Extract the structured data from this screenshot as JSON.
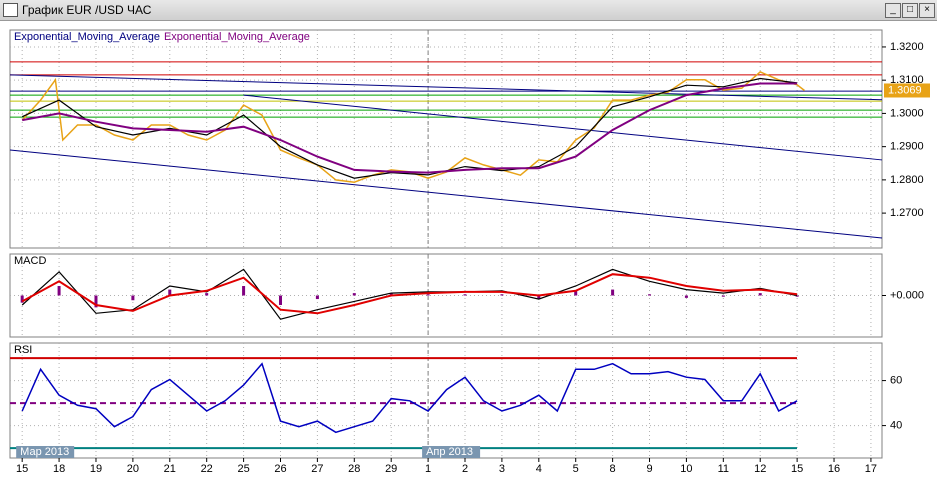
{
  "window": {
    "title": "График EUR /USD  ЧАС"
  },
  "chart_data": [
    {
      "type": "line",
      "xlim": [
        -0.33,
        23.3
      ],
      "ylim": [
        1.2595,
        1.3251
      ],
      "yticks": [
        {
          "value": 1.27,
          "label": "1.2700"
        },
        {
          "value": 1.28,
          "label": "1.2800"
        },
        {
          "value": 1.29,
          "label": "1.2900"
        },
        {
          "value": 1.3,
          "label": "1.3000"
        },
        {
          "value": 1.31,
          "label": "1.3100"
        },
        {
          "value": 1.32,
          "label": "1.3200"
        }
      ],
      "grid": true,
      "last_price": 1.3069,
      "series": [
        {
          "color": "#e8a317",
          "x": [
            0,
            0.5,
            0.9,
            1.1,
            1.5,
            2,
            2.5,
            3,
            3.5,
            4,
            4.5,
            5,
            5.5,
            6,
            6.5,
            7,
            7.5,
            8,
            8.5,
            9,
            9.5,
            10,
            10.5,
            11,
            11.5,
            12,
            12.5,
            13,
            13.5,
            14,
            14.5,
            15,
            15.5,
            16,
            16.5,
            17,
            17.5,
            18,
            18.5,
            19,
            19.5,
            20,
            20.5,
            21,
            21.2
          ],
          "values": [
            1.298,
            1.304,
            1.3101,
            1.292,
            1.2965,
            1.2965,
            1.2935,
            1.292,
            1.2965,
            1.2965,
            1.2935,
            1.292,
            1.295,
            1.3025,
            1.2995,
            1.289,
            1.2866,
            1.2845,
            1.28,
            1.2793,
            1.2814,
            1.283,
            1.2824,
            1.2805,
            1.2824,
            1.2866,
            1.2845,
            1.283,
            1.2814,
            1.286,
            1.2854,
            1.292,
            1.2956,
            1.304,
            1.304,
            1.3055,
            1.3064,
            1.3101,
            1.3101,
            1.307,
            1.3076,
            1.3125,
            1.3101,
            1.3086,
            1.3069
          ]
        },
        {
          "name": "Exponential_Moving_Average",
          "color": "#000000",
          "x": [
            0,
            1,
            2,
            3,
            4,
            5,
            6,
            7,
            8,
            9,
            10,
            11,
            12,
            13,
            14,
            15,
            16,
            17,
            18,
            19,
            20,
            21
          ],
          "values": [
            1.299,
            1.304,
            1.296,
            1.2935,
            1.2955,
            1.2935,
            1.2995,
            1.29,
            1.2845,
            1.2805,
            1.2822,
            1.2815,
            1.284,
            1.2828,
            1.284,
            1.29,
            1.302,
            1.305,
            1.3085,
            1.308,
            1.3105,
            1.3092
          ]
        },
        {
          "name": "Exponential_Moving_Average",
          "color": "#800080",
          "x": [
            0,
            1,
            2,
            3,
            4,
            5,
            6,
            7,
            8,
            9,
            10,
            11,
            12,
            13,
            14,
            15,
            16,
            17,
            18,
            19,
            20,
            21
          ],
          "values": [
            1.298,
            1.3,
            1.2975,
            1.2955,
            1.295,
            1.2945,
            1.296,
            1.292,
            1.287,
            1.283,
            1.2825,
            1.2822,
            1.283,
            1.2835,
            1.2835,
            1.287,
            1.295,
            1.301,
            1.3055,
            1.3075,
            1.309,
            1.309
          ]
        }
      ],
      "hlines": [
        {
          "value": 1.3155,
          "color": "#d00000"
        },
        {
          "value": 1.3116,
          "color": "#d00000"
        },
        {
          "value": 1.3067,
          "color": "#000080"
        },
        {
          "value": 1.3055,
          "color": "#00a000"
        },
        {
          "value": 1.3037,
          "color": "#c0c000"
        },
        {
          "value": 1.301,
          "color": "#00a000"
        },
        {
          "value": 1.2989,
          "color": "#00a000"
        }
      ],
      "trendlines": [
        {
          "color": "#000080",
          "x": [
            -0.33,
            23.3
          ],
          "values": [
            1.3116,
            1.3041
          ]
        },
        {
          "color": "#000080",
          "x": [
            6,
            23.3
          ],
          "values": [
            1.3055,
            1.286
          ]
        },
        {
          "color": "#000080",
          "x": [
            -0.33,
            23.3
          ],
          "values": [
            1.289,
            1.2625
          ]
        }
      ]
    },
    {
      "type": "line",
      "title": "MACD",
      "xlim": [
        -0.33,
        23.3
      ],
      "ylim": [
        -0.0035,
        0.0035
      ],
      "yticks": [
        {
          "value": 0,
          "label": "+0.000"
        }
      ],
      "grid": true,
      "series": [
        {
          "type": "bar",
          "color": "#800080",
          "x": [
            0,
            1,
            2,
            3,
            4,
            5,
            6,
            7,
            8,
            9,
            10,
            11,
            12,
            13,
            14,
            15,
            16,
            17,
            18,
            19,
            20,
            21
          ],
          "values": [
            -0.0006,
            0.0008,
            -0.001,
            -0.0004,
            0.0005,
            0.0002,
            0.0008,
            -0.0008,
            -0.0003,
            0.0002,
            0.0002,
            0.0001,
            0.0001,
            0.0001,
            -0.0003,
            0.0004,
            0.0005,
            0.0001,
            -0.0002,
            -0.0001,
            0.0002,
            -0.0001
          ]
        },
        {
          "color": "#000000",
          "x": [
            0,
            1,
            2,
            3,
            4,
            5,
            6,
            7,
            8,
            9,
            10,
            11,
            12,
            13,
            14,
            15,
            16,
            17,
            18,
            19,
            20,
            21
          ],
          "values": [
            -0.0008,
            0.002,
            -0.0015,
            -0.0012,
            0.0008,
            0.0003,
            0.0022,
            -0.002,
            -0.0012,
            -0.0005,
            0.0002,
            0.0003,
            0.0003,
            0.0004,
            -0.0003,
            0.0008,
            0.0022,
            0.0012,
            0.0005,
            0.0002,
            0.0006,
            0.0
          ]
        },
        {
          "color": "#e00000",
          "x": [
            0,
            1,
            2,
            3,
            4,
            5,
            6,
            7,
            8,
            9,
            10,
            11,
            12,
            13,
            14,
            15,
            16,
            17,
            18,
            19,
            20,
            21
          ],
          "values": [
            -0.0005,
            0.0012,
            -0.0008,
            -0.0013,
            0.0,
            0.0004,
            0.0015,
            -0.0012,
            -0.0015,
            -0.0008,
            0.0,
            0.0002,
            0.0003,
            0.0003,
            0.0,
            0.0004,
            0.0018,
            0.0015,
            0.0008,
            0.0004,
            0.0005,
            0.0001
          ]
        }
      ]
    },
    {
      "type": "line",
      "title": "RSI",
      "xlim": [
        -0.33,
        23.3
      ],
      "ylim": [
        25.6,
        76.7
      ],
      "yticks": [
        40,
        60
      ],
      "grid": true,
      "xticks": [
        {
          "value": 0,
          "label": "15"
        },
        {
          "value": 1,
          "label": "18"
        },
        {
          "value": 2,
          "label": "19"
        },
        {
          "value": 3,
          "label": "20"
        },
        {
          "value": 4,
          "label": "21"
        },
        {
          "value": 5,
          "label": "22"
        },
        {
          "value": 6,
          "label": "25"
        },
        {
          "value": 7,
          "label": "26"
        },
        {
          "value": 8,
          "label": "27"
        },
        {
          "value": 9,
          "label": "28"
        },
        {
          "value": 10,
          "label": "29"
        },
        {
          "value": 11,
          "label": "1"
        },
        {
          "value": 12,
          "label": "2"
        },
        {
          "value": 13,
          "label": "3"
        },
        {
          "value": 14,
          "label": "4"
        },
        {
          "value": 15,
          "label": "5"
        },
        {
          "value": 16,
          "label": "8"
        },
        {
          "value": 17,
          "label": "9"
        },
        {
          "value": 18,
          "label": "10"
        },
        {
          "value": 19,
          "label": "11"
        },
        {
          "value": 20,
          "label": "12"
        },
        {
          "value": 21,
          "label": "15"
        },
        {
          "value": 22,
          "label": "16"
        },
        {
          "value": 23,
          "label": "17"
        }
      ],
      "month_labels": [
        {
          "value": 0,
          "label": "Мар 2013"
        },
        {
          "value": 11,
          "label": "Апр 2013"
        }
      ],
      "series": [
        {
          "color": "#0000c0",
          "x": [
            0,
            0.5,
            1,
            1.5,
            2,
            2.5,
            3,
            3.5,
            4,
            4.5,
            5,
            5.5,
            6,
            6.5,
            7,
            7.5,
            8,
            8.5,
            9,
            9.5,
            10,
            10.5,
            11,
            11.5,
            12,
            12.5,
            13,
            13.5,
            14,
            14.5,
            15,
            15.5,
            16,
            16.5,
            17,
            17.5,
            18,
            18.5,
            19,
            19.5,
            20,
            20.5,
            21
          ],
          "values": [
            46.5,
            65,
            53.5,
            49,
            47.5,
            39.5,
            44,
            56,
            60.5,
            53.5,
            46.5,
            51,
            58,
            67.5,
            42,
            39.5,
            42,
            37,
            39.5,
            42,
            52,
            51,
            46.5,
            56,
            61.5,
            51,
            46.5,
            49,
            53.5,
            46.5,
            65,
            65,
            67.5,
            63,
            63,
            64,
            61.5,
            60.5,
            51,
            51,
            63,
            46.5,
            51
          ]
        }
      ],
      "hlines": [
        {
          "value": 70,
          "color": "#d00000"
        },
        {
          "value": 50,
          "color": "#800080",
          "dashed": true
        },
        {
          "value": 30,
          "color": "#008080"
        }
      ]
    }
  ]
}
